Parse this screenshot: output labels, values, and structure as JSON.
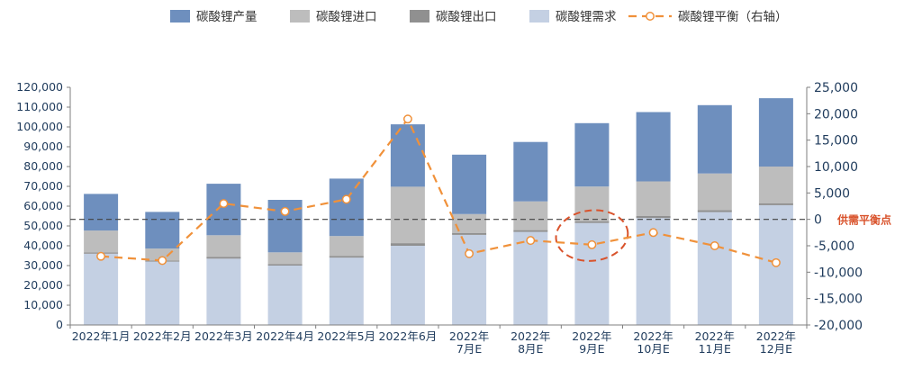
{
  "chart_data": {
    "type": "bar",
    "stacked": true,
    "categories": [
      [
        "2022年1月"
      ],
      [
        "2022年2月"
      ],
      [
        "2022年3月"
      ],
      [
        "2022年4月"
      ],
      [
        "2022年5月"
      ],
      [
        "2022年6月"
      ],
      [
        "2022年",
        "7月E"
      ],
      [
        "2022年",
        "8月E"
      ],
      [
        "2022年",
        "9月E"
      ],
      [
        "2022年",
        "10月E"
      ],
      [
        "2022年",
        "11月E"
      ],
      [
        "2022年",
        "12月E"
      ]
    ],
    "series": [
      {
        "name": "碳酸锂需求",
        "kind": "bar",
        "color": "#c4d0e3",
        "values": [
          36000,
          32000,
          33500,
          30000,
          34000,
          40000,
          45500,
          47000,
          51500,
          54000,
          57000,
          60500
        ]
      },
      {
        "name": "碳酸锂出口",
        "kind": "bar",
        "color": "#909090",
        "values": [
          700,
          600,
          800,
          700,
          900,
          1300,
          1000,
          900,
          900,
          1000,
          1000,
          1000
        ]
      },
      {
        "name": "碳酸锂进口",
        "kind": "bar",
        "color": "#bdbdbd",
        "values": [
          11000,
          6000,
          11000,
          6000,
          10000,
          28500,
          9500,
          14500,
          17500,
          17500,
          18500,
          18500
        ]
      },
      {
        "name": "碳酸锂产量",
        "kind": "bar",
        "color": "#6e8fbe",
        "values": [
          18500,
          18500,
          26000,
          26500,
          29000,
          31500,
          30000,
          30000,
          32000,
          35000,
          34500,
          34500
        ]
      },
      {
        "name": "碳酸锂平衡（右轴）",
        "kind": "line",
        "axis": "right",
        "color": "#f0913a",
        "values": [
          -7000,
          -7800,
          3000,
          1500,
          3800,
          19000,
          -6500,
          -4000,
          -4800,
          -2500,
          -5000,
          -8200
        ]
      }
    ],
    "legend_order": [
      "碳酸锂产量",
      "碳酸锂进口",
      "碳酸锂出口",
      "碳酸锂需求",
      "碳酸锂平衡（右轴）"
    ],
    "left_axis": {
      "min": 0,
      "max": 120000,
      "step": 10000
    },
    "right_axis": {
      "min": -20000,
      "max": 25000,
      "step": 5000
    },
    "reference_line": {
      "axis": "right",
      "value": 0,
      "label": "供需平衡点"
    },
    "annotation": {
      "type": "ellipse",
      "category_index": 8,
      "color": "#d9532c"
    },
    "legend_position": "top",
    "grid": false
  }
}
